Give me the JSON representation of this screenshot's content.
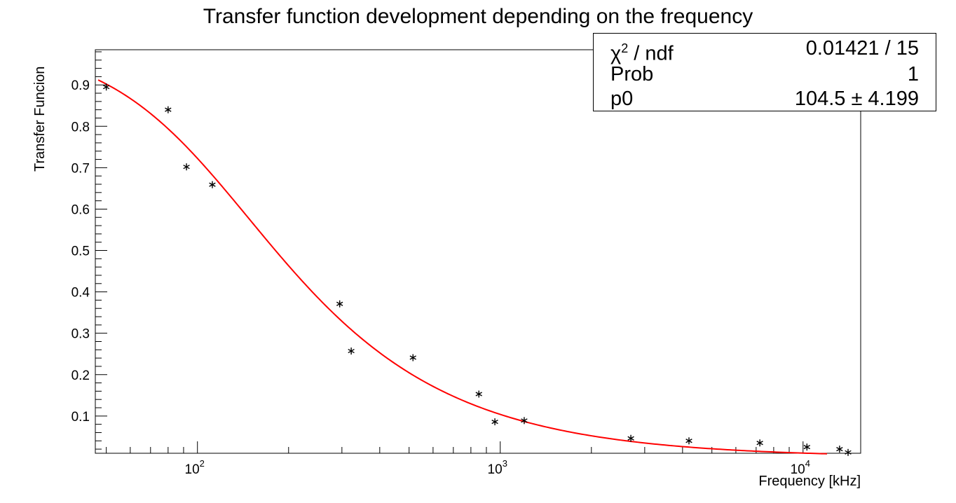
{
  "chart_data": {
    "type": "scatter",
    "title": "Transfer function development depending on the frequency",
    "xlabel": "Frequency [kHz]",
    "ylabel": "Transfer Funcion",
    "xscale": "log",
    "xlim": [
      46,
      15500
    ],
    "ylim": [
      0.01,
      0.985
    ],
    "grid": false,
    "x_tick_labels": [
      {
        "value": 100,
        "base": "10",
        "exp": "2"
      },
      {
        "value": 1000,
        "base": "10",
        "exp": "3"
      },
      {
        "value": 10000,
        "base": "10",
        "exp": "4"
      }
    ],
    "y_ticks": [
      0.1,
      0.2,
      0.3,
      0.4,
      0.5,
      0.6,
      0.7,
      0.8,
      0.9
    ],
    "y_tick_labels": [
      "0.1",
      "0.2",
      "0.3",
      "0.4",
      "0.5",
      "0.6",
      "0.7",
      "0.8",
      "0.9"
    ],
    "series": [
      {
        "marker": "*",
        "color": "#000000",
        "points": [
          [
            50,
            0.895
          ],
          [
            80,
            0.84
          ],
          [
            92,
            0.702
          ],
          [
            112,
            0.659
          ],
          [
            295,
            0.371
          ],
          [
            322,
            0.257
          ],
          [
            515,
            0.241
          ],
          [
            850,
            0.153
          ],
          [
            960,
            0.086
          ],
          [
            1200,
            0.089
          ],
          [
            2700,
            0.046
          ],
          [
            4200,
            0.04
          ],
          [
            7200,
            0.035
          ],
          [
            10300,
            0.025
          ],
          [
            13200,
            0.02
          ],
          [
            20000,
            0.012
          ]
        ]
      },
      {
        "style": "line",
        "color": "#ff0000",
        "function": "1/sqrt(1+(x/p0)^2)",
        "p0": 104.5,
        "x_range": [
          47,
          12000
        ]
      }
    ],
    "stats": {
      "rows": [
        {
          "key_pre": "χ",
          "key_sup": "2",
          "key_post": " / ndf",
          "value": "0.01421 / 15"
        },
        {
          "key": "Prob",
          "value": "1"
        },
        {
          "key": "p0",
          "value": "104.5 ± 4.199"
        }
      ]
    }
  }
}
